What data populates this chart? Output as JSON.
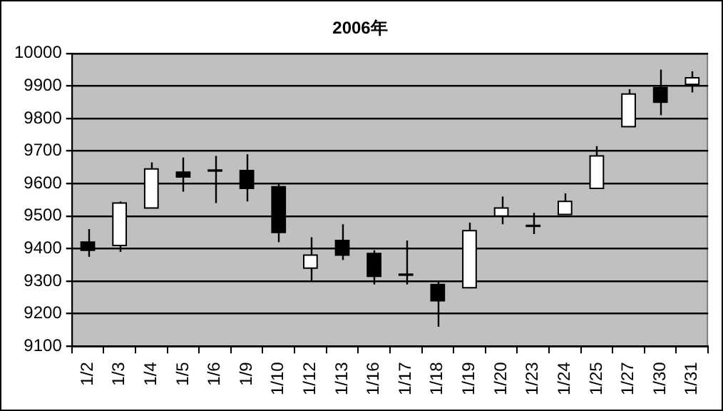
{
  "chart_data": {
    "type": "candlestick",
    "title": "2006年",
    "categories": [
      "1/2",
      "1/3",
      "1/4",
      "1/5",
      "1/6",
      "1/9",
      "1/10",
      "1/12",
      "1/13",
      "1/16",
      "1/17",
      "1/18",
      "1/19",
      "1/20",
      "1/23",
      "1/24",
      "1/25",
      "1/27",
      "1/30",
      "1/31"
    ],
    "ohlc": [
      [
        9420,
        9460,
        9375,
        9395
      ],
      [
        9410,
        9545,
        9390,
        9540
      ],
      [
        9525,
        9665,
        9525,
        9645
      ],
      [
        9635,
        9680,
        9575,
        9620
      ],
      [
        9640,
        9685,
        9540,
        9640
      ],
      [
        9640,
        9690,
        9545,
        9585
      ],
      [
        9590,
        9600,
        9420,
        9450
      ],
      [
        9340,
        9435,
        9300,
        9380
      ],
      [
        9425,
        9475,
        9365,
        9380
      ],
      [
        9385,
        9395,
        9290,
        9315
      ],
      [
        9320,
        9425,
        9290,
        9320
      ],
      [
        9290,
        9300,
        9160,
        9240
      ],
      [
        9280,
        9480,
        9280,
        9455
      ],
      [
        9500,
        9560,
        9475,
        9525
      ],
      [
        9470,
        9510,
        9445,
        9470
      ],
      [
        9505,
        9570,
        9505,
        9545
      ],
      [
        9585,
        9715,
        9585,
        9685
      ],
      [
        9775,
        9890,
        9775,
        9875
      ],
      [
        9895,
        9950,
        9810,
        9850
      ],
      [
        9905,
        9945,
        9880,
        9925
      ]
    ],
    "colors": [
      "#000000",
      "#ffffff",
      "#ffffff",
      "#000000",
      "#000000",
      "#000000",
      "#000000",
      "#ffffff",
      "#000000",
      "#000000",
      "#000000",
      "#000000",
      "#ffffff",
      "#ffffff",
      "#000000",
      "#ffffff",
      "#ffffff",
      "#ffffff",
      "#000000",
      "#ffffff"
    ],
    "ylim": [
      9100,
      10000
    ],
    "yticks": [
      9100,
      9200,
      9300,
      9400,
      9500,
      9600,
      9700,
      9800,
      9900,
      10000
    ],
    "grid": "y",
    "legend": false
  }
}
